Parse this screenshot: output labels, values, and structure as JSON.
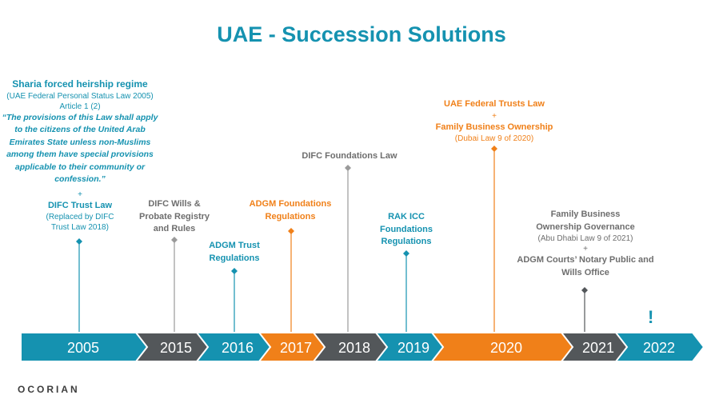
{
  "title": "UAE - Succession Solutions",
  "logo": "OCORIAN",
  "colors": {
    "teal": "#1592b0",
    "orange": "#f08019",
    "grey": "#53575a",
    "light_grey": "#9a9a9a"
  },
  "timeline": [
    {
      "year": "2005",
      "color": "teal"
    },
    {
      "year": "2015",
      "color": "grey"
    },
    {
      "year": "2016",
      "color": "teal"
    },
    {
      "year": "2017",
      "color": "orange"
    },
    {
      "year": "2018",
      "color": "grey"
    },
    {
      "year": "2019",
      "color": "teal"
    },
    {
      "year": "2020",
      "color": "orange"
    },
    {
      "year": "2021",
      "color": "grey"
    },
    {
      "year": "2022",
      "color": "teal"
    }
  ],
  "events": {
    "e2005": {
      "heading": "Sharia forced heirship regime",
      "lines": [
        "(UAE Federal Personal Status Law 2005)",
        "Article 1 (2)"
      ],
      "quote": [
        "“The provisions of this Law shall apply",
        "to the citizens of the United Arab",
        "Emirates State unless non-Muslims",
        "among them have special provisions",
        "applicable to their community or",
        "confession.”"
      ],
      "plus": "+",
      "sub_heading": "DIFC Trust Law",
      "sub_lines": [
        "(Replaced by DIFC",
        "Trust  Law 2018)"
      ]
    },
    "e2015": {
      "lines": [
        "DIFC Wills &",
        "Probate Registry",
        "and Rules"
      ]
    },
    "e2016": {
      "lines": [
        "ADGM Trust",
        "Regulations"
      ]
    },
    "e2017": {
      "lines": [
        "ADGM Foundations",
        "Regulations"
      ]
    },
    "e2018": {
      "lines": [
        "DIFC Foundations Law"
      ]
    },
    "e2019": {
      "lines": [
        "RAK ICC",
        "Foundations",
        "Regulations"
      ]
    },
    "e2020": {
      "line1": "UAE Federal Trusts Law",
      "plus": "+",
      "line2": "Family Business Ownership",
      "note": "(Dubai Law 9 of 2020)"
    },
    "e2021": {
      "line1": [
        "Family Business",
        "Ownership Governance"
      ],
      "note": "(Abu Dhabi Law 9 of 2021)",
      "plus": "+",
      "line2": [
        "ADGM Courts’ Notary Public and",
        "Wills Office"
      ]
    },
    "e2022": {
      "mark": "!"
    }
  }
}
